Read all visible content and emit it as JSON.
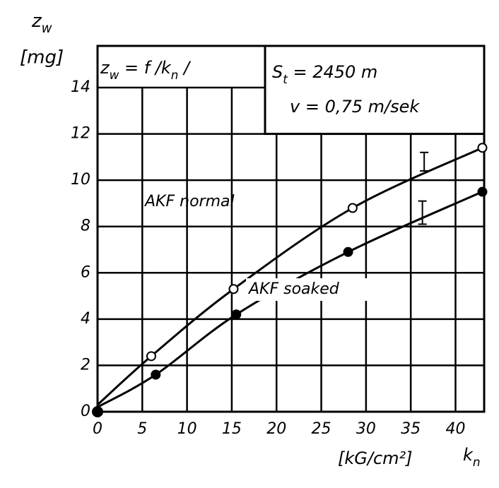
{
  "chart_data": {
    "type": "line",
    "ylabel": [
      "z",
      "w"
    ],
    "yunit": "[mg]",
    "xlabel": "[kG/cm²]",
    "xsymbol": [
      "k",
      "n"
    ],
    "formula": [
      "z",
      "w",
      " = f /k",
      "n",
      " /"
    ],
    "conditions": [
      [
        "S",
        "t",
        " = 2450 m"
      ],
      [
        "v = 0,75 m/sek"
      ]
    ],
    "series": [
      {
        "name": "AKF normal",
        "color": "#000000",
        "filled": false,
        "x": [
          0,
          6,
          15.2,
          28.5,
          43
        ],
        "values": [
          0.3,
          2.4,
          5.3,
          8.8,
          11.4
        ],
        "error_bars": [
          {
            "x": 36.5,
            "value": 10.8,
            "error": 0.4
          }
        ]
      },
      {
        "name": "AKF soaked",
        "color": "#000000",
        "filled": true,
        "x": [
          0,
          6.5,
          15.5,
          28,
          43
        ],
        "values": [
          0.2,
          1.6,
          4.2,
          6.9,
          9.5
        ],
        "error_bars": [
          {
            "x": 36.3,
            "value": 8.6,
            "error": 0.5
          }
        ]
      }
    ],
    "xlim": [
      0,
      43.2
    ],
    "ylim": [
      0,
      15.8
    ],
    "xticks": [
      0,
      5,
      10,
      15,
      20,
      25,
      30,
      35,
      40
    ],
    "yticks": [
      0,
      2,
      4,
      6,
      8,
      10,
      12,
      14
    ],
    "grid": true
  }
}
